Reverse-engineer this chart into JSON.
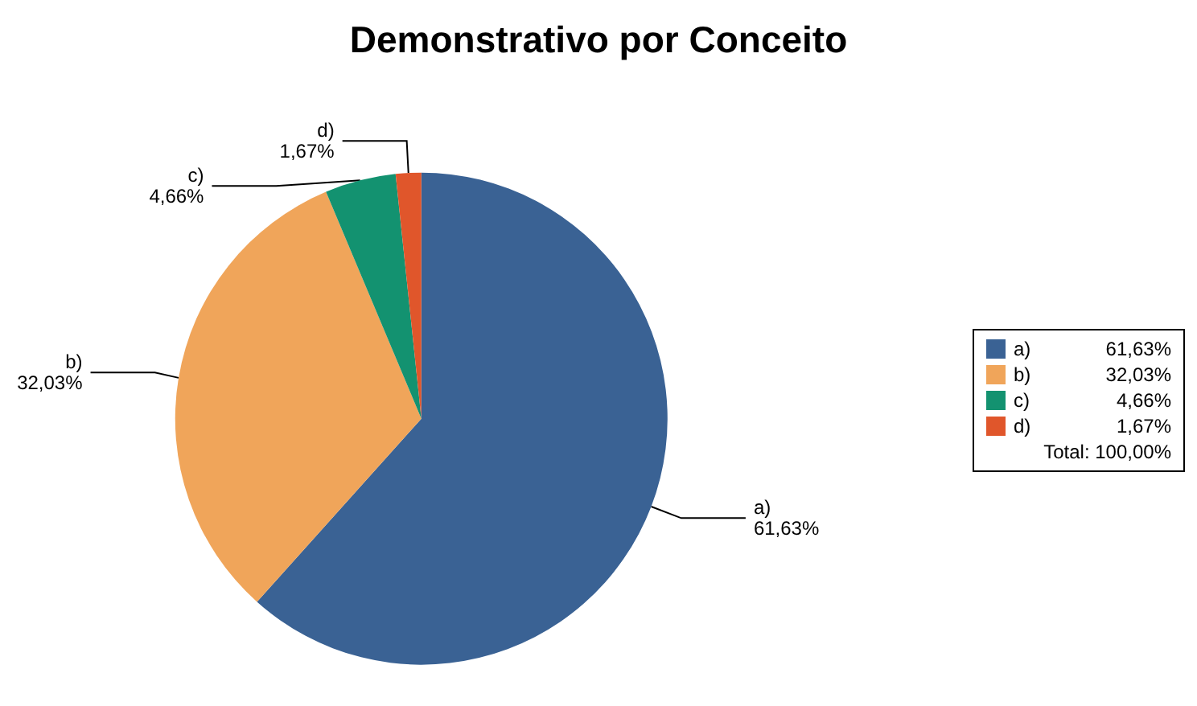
{
  "chart_data": {
    "type": "pie",
    "title": "Demonstrativo por Conceito",
    "categories": [
      "a)",
      "b)",
      "c)",
      "d)"
    ],
    "values": [
      61.63,
      32.03,
      4.66,
      1.67
    ],
    "value_labels": [
      "61,63%",
      "32,03%",
      "4,66%",
      "1,67%"
    ],
    "colors": [
      "#3a6294",
      "#f0a55a",
      "#139270",
      "#e0562b"
    ],
    "legend": "right",
    "annotations": [
      "Total: 100,00%"
    ]
  }
}
